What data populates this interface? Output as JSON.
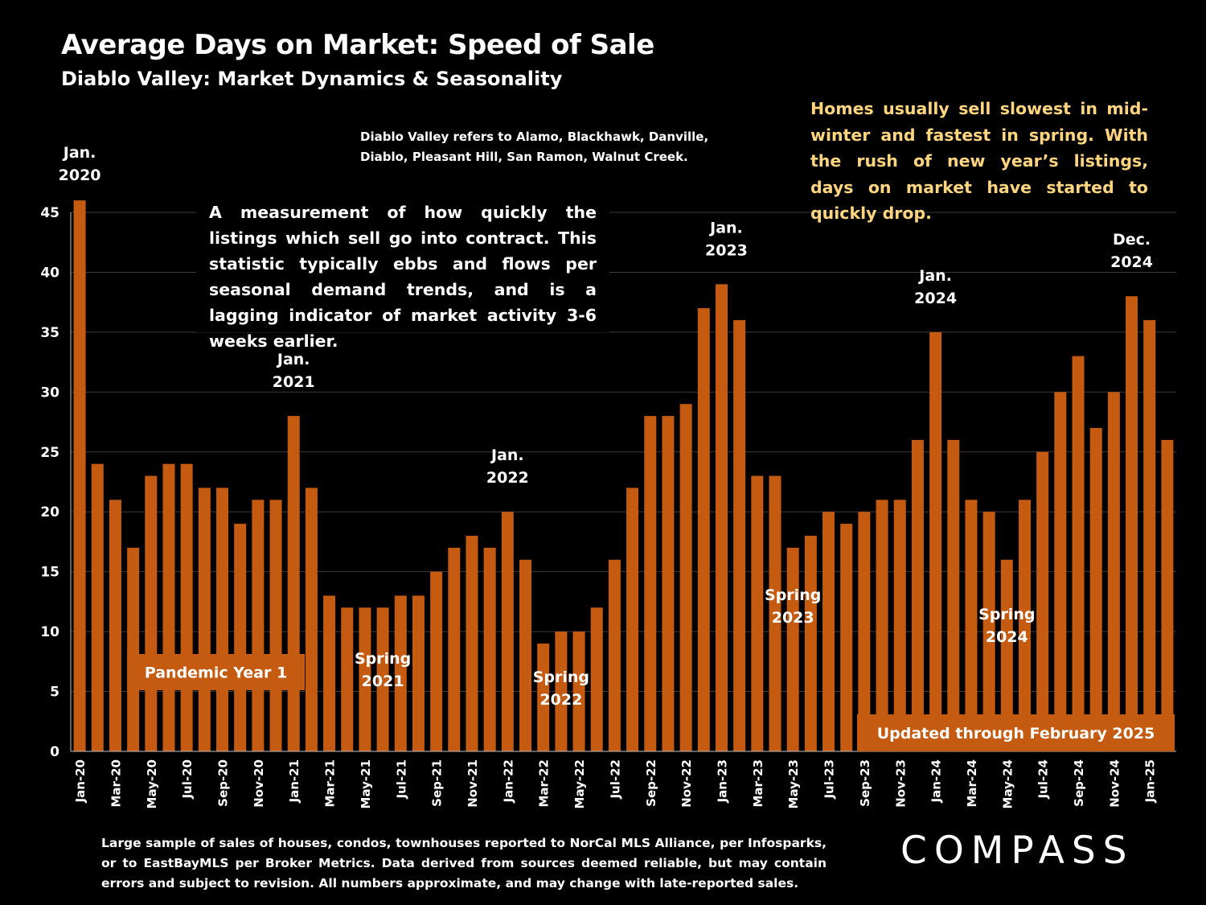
{
  "header": {
    "title": "Average Days on Market:  Speed of Sale",
    "subtitle": "Diablo Valley: Market Dynamics & Seasonality"
  },
  "notes": {
    "region": "Diablo Valley refers to Alamo, Blackhawk, Danville, Diablo, Pleasant Hill, San Ramon, Walnut Creek.",
    "seasonality": "Homes usually sell slowest in mid-winter and fastest in spring. With the rush of new year’s listings, days on market have started to quickly drop.",
    "definition": "A measurement of how quickly the listings which sell go into contract. This statistic typically ebbs and flows per seasonal demand trends, and is a lagging indicator of market activity 3-6 weeks earlier."
  },
  "footer": {
    "source": "Large sample of sales of houses, condos, townhouses reported to NorCal MLS Alliance, per Infosparks, or to EastBayMLS per Broker Metrics. Data derived from sources deemed reliable, but may contain errors and subject to revision. All numbers approximate, and may change with late-reported sales.",
    "logo": "COMPASS"
  },
  "colors": {
    "background": "#000000",
    "bar": "#c55a11",
    "text": "#ffffff",
    "highlight_text": "#ffd580",
    "gridline": "#3a3a3a"
  },
  "chart_data": {
    "type": "bar",
    "ylim": [
      0,
      45
    ],
    "yticks": [
      0,
      5,
      10,
      15,
      20,
      25,
      30,
      35,
      40,
      45
    ],
    "grid": true,
    "categories": [
      "Jan-20",
      "Feb-20",
      "Mar-20",
      "Apr-20",
      "May-20",
      "Jun-20",
      "Jul-20",
      "Aug-20",
      "Sep-20",
      "Oct-20",
      "Nov-20",
      "Dec-20",
      "Jan-21",
      "Feb-21",
      "Mar-21",
      "Apr-21",
      "May-21",
      "Jun-21",
      "Jul-21",
      "Aug-21",
      "Sep-21",
      "Oct-21",
      "Nov-21",
      "Dec-21",
      "Jan-22",
      "Feb-22",
      "Mar-22",
      "Apr-22",
      "May-22",
      "Jun-22",
      "Jul-22",
      "Aug-22",
      "Sep-22",
      "Oct-22",
      "Nov-22",
      "Dec-22",
      "Jan-23",
      "Feb-23",
      "Mar-23",
      "Apr-23",
      "May-23",
      "Jun-23",
      "Jul-23",
      "Aug-23",
      "Sep-23",
      "Oct-23",
      "Nov-23",
      "Dec-23",
      "Jan-24",
      "Feb-24",
      "Mar-24",
      "Apr-24",
      "May-24",
      "Jun-24",
      "Jul-24",
      "Aug-24",
      "Sep-24",
      "Oct-24",
      "Nov-24",
      "Dec-24",
      "Jan-25",
      "Feb-25"
    ],
    "tick_labels": [
      "Jan-20",
      "Mar-20",
      "May-20",
      "Jul-20",
      "Sep-20",
      "Nov-20",
      "Jan-21",
      "Mar-21",
      "May-21",
      "Jul-21",
      "Sep-21",
      "Nov-21",
      "Jan-22",
      "Mar-22",
      "May-22",
      "Jul-22",
      "Sep-22",
      "Nov-22",
      "Jan-23",
      "Mar-23",
      "May-23",
      "Jul-23",
      "Sep-23",
      "Nov-23",
      "Jan-24",
      "Mar-24",
      "May-24",
      "Jul-24",
      "Sep-24",
      "Nov-24",
      "Jan-25"
    ],
    "values": [
      46,
      24,
      21,
      17,
      23,
      24,
      24,
      22,
      22,
      19,
      21,
      21,
      28,
      22,
      13,
      12,
      12,
      12,
      13,
      13,
      15,
      17,
      18,
      17,
      20,
      16,
      9,
      10,
      10,
      12,
      16,
      22,
      28,
      28,
      29,
      37,
      39,
      36,
      23,
      23,
      17,
      18,
      20,
      19,
      20,
      21,
      21,
      26,
      35,
      26,
      21,
      20,
      16,
      21,
      25,
      30,
      33,
      27,
      30,
      38,
      36,
      26
    ],
    "annotations": [
      {
        "lines": [
          "Jan.",
          "2020"
        ],
        "category": "Jan-20"
      },
      {
        "lines": [
          "Jan.",
          "2021"
        ],
        "category": "Jan-21"
      },
      {
        "lines": [
          "Jan.",
          "2022"
        ],
        "category": "Jan-22"
      },
      {
        "lines": [
          "Jan.",
          "2023"
        ],
        "category": "Jan-23"
      },
      {
        "lines": [
          "Jan.",
          "2024"
        ],
        "category": "Jan-24"
      },
      {
        "lines": [
          "Dec.",
          "2024"
        ],
        "category": "Dec-24"
      },
      {
        "lines": [
          "Spring",
          "2021"
        ],
        "category": "Jun-21",
        "in_bars": true
      },
      {
        "lines": [
          "Spring",
          "2022"
        ],
        "category": "Apr-22",
        "in_bars": true
      },
      {
        "lines": [
          "Spring",
          "2023"
        ],
        "category": "May-23",
        "in_bars": true
      },
      {
        "lines": [
          "Spring",
          "2024"
        ],
        "category": "May-24",
        "in_bars": true
      }
    ],
    "bands": [
      {
        "label": "Pandemic Year 1"
      },
      {
        "label": "Updated through February 2025"
      }
    ]
  }
}
